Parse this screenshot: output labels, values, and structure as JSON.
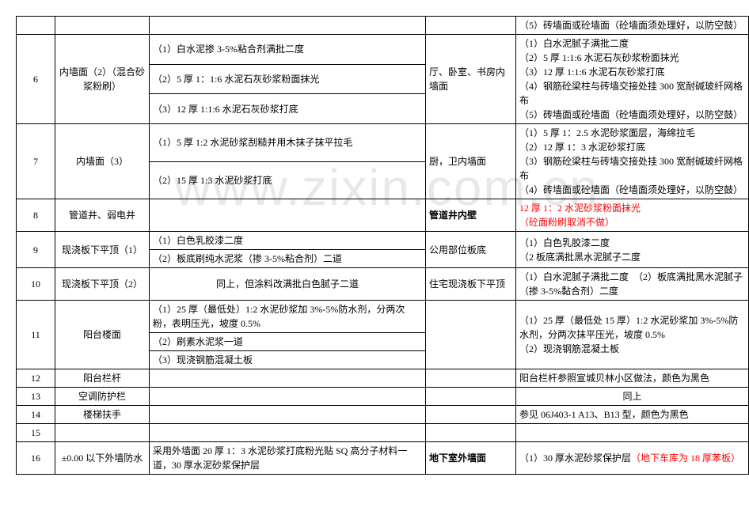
{
  "watermark": "www.zixin.com.cn",
  "rows": [
    {
      "num": "",
      "name": "",
      "desc_lines": [
        ""
      ],
      "loc": "",
      "detail_lines": [
        "（5）砖墙面或砼墙面（砼墙面须处理好，以防空鼓）"
      ]
    },
    {
      "num": "6",
      "name": "内墙面（2）（混合砂浆粉刷）",
      "desc_lines": [
        "（1）白水泥掺 3-5%粘合剂满批二度",
        "（2）5 厚 1：1:6 水泥石灰砂浆粉面抹光",
        "（3）12 厚 1:1:6 水泥石灰砂浆打底"
      ],
      "loc": "厅、卧室、书房内墙面",
      "detail_lines": [
        "（1）白水泥腻子满批二度",
        "（2）5 厚 1:1:6 水泥石灰砂浆粉面抹光",
        "（3）12 厚 1:1:6 水泥石灰砂浆打底",
        "（4）钢筋砼梁柱与砖墙交接处挂 300 宽耐碱玻纤网格布",
        "（5）砖墙面或砼墙面（砼墙面须处理好，以防空鼓）"
      ]
    },
    {
      "num": "7",
      "name": "内墙面（3）",
      "desc_lines": [
        "（1）5 厚 1:2 水泥砂浆刮糙并用木抹子抹平拉毛",
        "（2）15 厚 1:3 水泥砂浆打底"
      ],
      "loc": "厨，卫内墙面",
      "detail_lines": [
        "（1）5 厚 1：2.5 水泥砂浆面层，海绵拉毛",
        "（2）12 厚 1：3 水泥砂浆打底",
        "（3）钢筋砼梁柱与砖墙交接处挂 300 宽耐碱玻纤网格布",
        "（4）砖墙面或砼墙面（砼墙面须处理好，以防空鼓）"
      ]
    },
    {
      "num": "8",
      "name": "管道井、弱电井",
      "desc_lines": [
        ""
      ],
      "loc": "管道井内壁",
      "loc_bold": true,
      "detail_lines": [
        "12 厚 1：2 水泥砂浆粉面抹光",
        "（砼面粉刷取消不做）"
      ],
      "detail_red": true
    },
    {
      "num": "9",
      "name": "现浇板下平顶（1）",
      "desc_lines": [
        "（1）白色乳胶漆二度",
        "（2）板底刷纯水泥浆（掺 3-5%粘合剂）二道"
      ],
      "loc": "公用部位板底",
      "detail_lines": [
        "（1）白色乳胶漆二度",
        "（2 板底满批黑水泥腻子二度"
      ]
    },
    {
      "num": "10",
      "name": "现浇板下平顶（2）",
      "desc_lines": [
        "同上，但涂料改满批白色腻子二道"
      ],
      "desc_center": true,
      "loc": "住宅现浇板下平顶",
      "detail_lines": [
        "（1）白水泥腻子满批二度　（2）板底满批黑水泥腻子（掺 3-5%黏合剂）二度"
      ]
    },
    {
      "num": "11",
      "name": "阳台楼面",
      "desc_lines": [
        "（1）25 厚（最低处）1:2 水泥砂浆加 3%-5%防水剂，分两次粉，表明压光，坡度 0.5%",
        "（2）刷素水泥浆一道",
        "（3）现浇钢筋混凝土板"
      ],
      "loc": "",
      "detail_lines": [
        "（1）25 厚（最低处 15 厚）1:2 水泥砂浆加 3%-5%防水剂，分两次抹平压光，坡度 0.5%",
        "（2）现浇钢筋混凝土板"
      ]
    },
    {
      "num": "12",
      "name": "阳台栏杆",
      "desc_lines": [
        ""
      ],
      "loc": "",
      "detail_lines": [
        "阳台栏杆参照宣城贝林小区做法，颜色为黑色"
      ]
    },
    {
      "num": "13",
      "name": "空调防护栏",
      "desc_lines": [
        ""
      ],
      "loc": "",
      "detail_lines": [
        "同上"
      ],
      "detail_center": true
    },
    {
      "num": "14",
      "name": "楼梯扶手",
      "desc_lines": [
        ""
      ],
      "loc": "",
      "detail_lines": [
        "参见 06J403-1 A13、B13 型，颜色为黑色"
      ]
    },
    {
      "num": "15",
      "name": "",
      "desc_lines": [
        ""
      ],
      "loc": "",
      "detail_lines": [
        ""
      ]
    },
    {
      "num": "16",
      "name": "±0.00 以下外墙防水",
      "desc_lines": [
        "采用外墙面 20 厚 1：3 水泥砂浆打底粉光贴 SQ 高分子材料一道，30 厚水泥砂浆保护层"
      ],
      "loc": "地下室外墙面",
      "loc_bold": true,
      "detail_mixed": {
        "black": "（1）30 厚水泥砂浆保护层",
        "red": "（地下车库为 18 厚苯板）"
      }
    }
  ],
  "colors": {
    "text": "#000000",
    "red": "#ff0000",
    "border": "#000000",
    "bg": "#ffffff",
    "watermark": "#e8e8e8"
  }
}
